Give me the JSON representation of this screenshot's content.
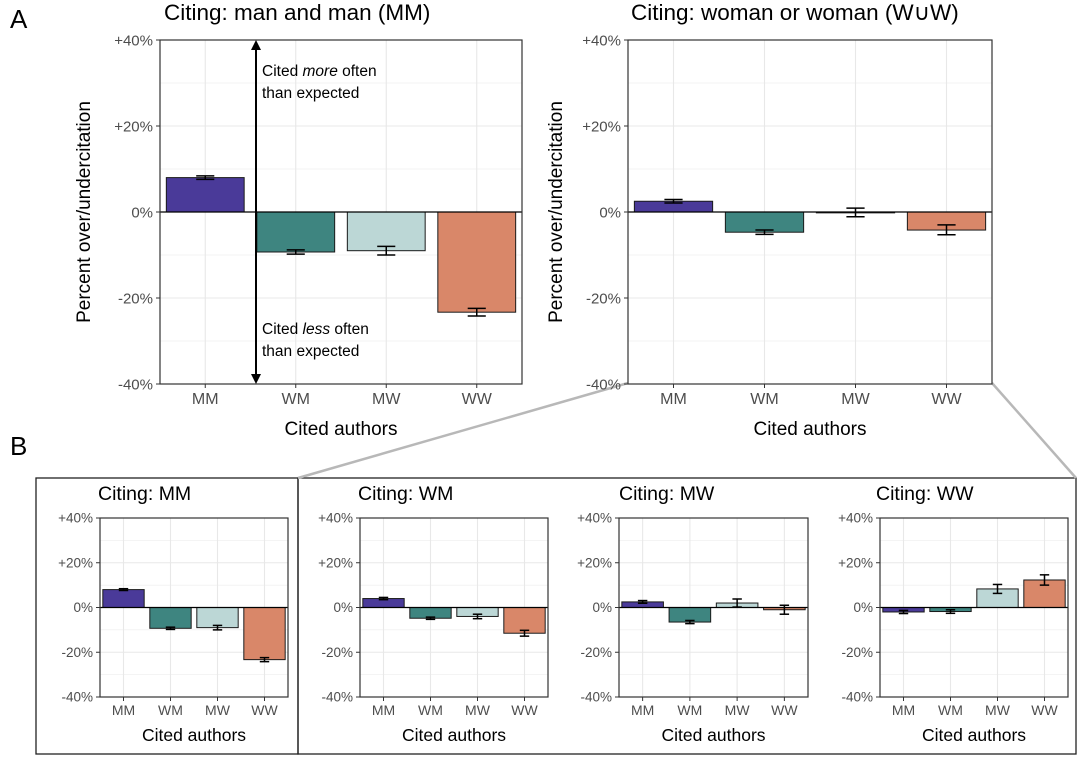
{
  "panel_labels": {
    "a": "A",
    "b": "B"
  },
  "colors": {
    "MM": "#4a3a99",
    "WM": "#3e8580",
    "MW": "#bcd7d6",
    "WW": "#d98769",
    "grid": "#e8e8e8",
    "axis_text": "#4d4d4d",
    "zoom_line": "#b8b8b8"
  },
  "annotations": {
    "more_prefix": "Cited ",
    "more_emph": "more",
    "more_suffix": " often",
    "more_line2": "than expected",
    "less_prefix": "Cited ",
    "less_emph": "less",
    "less_suffix": " often",
    "less_line2": "than expected"
  },
  "chart_data": [
    {
      "id": "a-mm",
      "type": "bar",
      "title": "Citing: man and man (MM)",
      "xlabel": "Cited authors",
      "ylabel": "Percent over/undercitation",
      "ylim": [
        -40,
        40
      ],
      "ytick_values": [
        40,
        20,
        0,
        -20,
        -40
      ],
      "ytick_labels": [
        "+40%",
        "+20%",
        "0%",
        "-20%",
        "-40%"
      ],
      "categories": [
        "MM",
        "WM",
        "MW",
        "WW"
      ],
      "values": [
        8,
        -9.3,
        -9,
        -23.3
      ],
      "errors": [
        [
          7.6,
          8.4
        ],
        [
          -9.8,
          -8.8
        ],
        [
          -10,
          -8
        ],
        [
          -24.2,
          -22.4
        ]
      ]
    },
    {
      "id": "a-wuw",
      "type": "bar",
      "title": "Citing: woman or woman (W∪W)",
      "xlabel": "Cited authors",
      "ylabel": "Percent over/undercitation",
      "ylim": [
        -40,
        40
      ],
      "ytick_values": [
        40,
        20,
        0,
        -20,
        -40
      ],
      "ytick_labels": [
        "+40%",
        "+20%",
        "0%",
        "-20%",
        "-40%"
      ],
      "categories": [
        "MM",
        "WM",
        "MW",
        "WW"
      ],
      "values": [
        2.5,
        -4.7,
        -0.2,
        -4.2
      ],
      "errors": [
        [
          2.1,
          2.9
        ],
        [
          -5.2,
          -4.2
        ],
        [
          -1.1,
          0.9
        ],
        [
          -5.3,
          -3
        ]
      ]
    },
    {
      "id": "b-mm",
      "type": "bar",
      "title": "Citing: MM",
      "xlabel": "Cited authors",
      "ylim": [
        -40,
        40
      ],
      "ytick_values": [
        40,
        20,
        0,
        -20,
        -40
      ],
      "ytick_labels": [
        "+40%",
        "+20%",
        "0%",
        "-20%",
        "-40%"
      ],
      "categories": [
        "MM",
        "WM",
        "MW",
        "WW"
      ],
      "values": [
        8,
        -9.3,
        -9,
        -23.3
      ],
      "errors": [
        [
          7.6,
          8.4
        ],
        [
          -9.8,
          -8.8
        ],
        [
          -10,
          -8
        ],
        [
          -24.2,
          -22.4
        ]
      ]
    },
    {
      "id": "b-wm",
      "type": "bar",
      "title": "Citing: WM",
      "xlabel": "Cited authors",
      "ylim": [
        -40,
        40
      ],
      "ytick_values": [
        40,
        20,
        0,
        -20,
        -40
      ],
      "ytick_labels": [
        "+40%",
        "+20%",
        "0%",
        "-20%",
        "-40%"
      ],
      "categories": [
        "MM",
        "WM",
        "MW",
        "WW"
      ],
      "values": [
        4,
        -4.8,
        -4,
        -11.5
      ],
      "errors": [
        [
          3.5,
          4.5
        ],
        [
          -5.3,
          -4.3
        ],
        [
          -5,
          -3
        ],
        [
          -12.8,
          -10.2
        ]
      ]
    },
    {
      "id": "b-mw",
      "type": "bar",
      "title": "Citing: MW",
      "xlabel": "Cited authors",
      "ylim": [
        -40,
        40
      ],
      "ytick_values": [
        40,
        20,
        0,
        -20,
        -40
      ],
      "ytick_labels": [
        "+40%",
        "+20%",
        "0%",
        "-20%",
        "-40%"
      ],
      "categories": [
        "MM",
        "WM",
        "MW",
        "WW"
      ],
      "values": [
        2.5,
        -6.5,
        2,
        -1
      ],
      "errors": [
        [
          1.9,
          3.1
        ],
        [
          -7.2,
          -5.8
        ],
        [
          0.2,
          3.8
        ],
        [
          -3,
          1
        ]
      ]
    },
    {
      "id": "b-ww",
      "type": "bar",
      "title": "Citing: WW",
      "xlabel": "Cited authors",
      "ylim": [
        -40,
        40
      ],
      "ytick_values": [
        40,
        20,
        0,
        -20,
        -40
      ],
      "ytick_labels": [
        "+40%",
        "+20%",
        "0%",
        "-20%",
        "-40%"
      ],
      "categories": [
        "MM",
        "WM",
        "MW",
        "WW"
      ],
      "values": [
        -2,
        -1.8,
        8.3,
        12.3
      ],
      "errors": [
        [
          -2.7,
          -1.3
        ],
        [
          -2.6,
          -1
        ],
        [
          6.3,
          10.3
        ],
        [
          10,
          14.6
        ]
      ]
    }
  ]
}
